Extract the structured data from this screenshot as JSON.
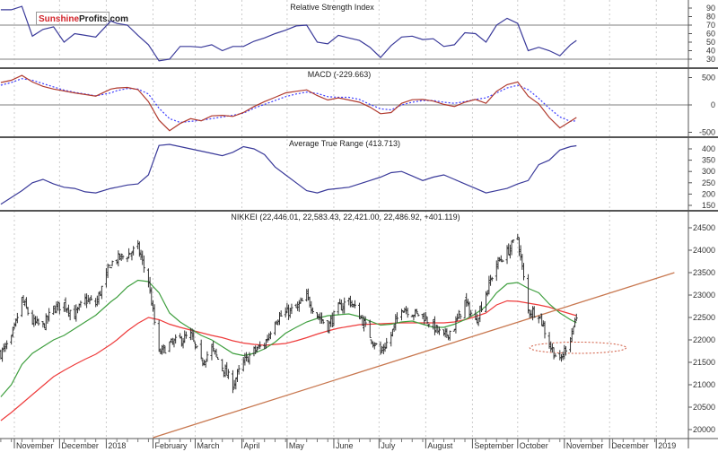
{
  "logo": {
    "part1": "Sunshine",
    "part2": "Profits.com"
  },
  "chart_data": {
    "type": "line",
    "colors": {
      "price_bars": "#333333",
      "ma_short": "#3f9f3f",
      "ma_long": "#ee3b3b",
      "trendline": "#c87850",
      "rsi": "#3a3a9a",
      "macd": "#b03a2e",
      "macd_signal": "#3c3cff",
      "atr": "#3a3a9a",
      "ellipse": "#d05a40"
    },
    "x_axis": {
      "range": [
        "2017-10-22",
        "2019-01-14"
      ],
      "ticks": [
        {
          "date": "2017-11-01",
          "label": "November"
        },
        {
          "date": "2017-12-01",
          "label": "December"
        },
        {
          "date": "2018-01-01",
          "label": "2018"
        },
        {
          "date": "2018-02-01",
          "label": "February"
        },
        {
          "date": "2018-03-01",
          "label": "March"
        },
        {
          "date": "2018-04-01",
          "label": "April"
        },
        {
          "date": "2018-05-01",
          "label": "May"
        },
        {
          "date": "2018-06-01",
          "label": "June"
        },
        {
          "date": "2018-07-01",
          "label": "July"
        },
        {
          "date": "2018-08-01",
          "label": "August"
        },
        {
          "date": "2018-09-01",
          "label": "September"
        },
        {
          "date": "2018-10-01",
          "label": "October"
        },
        {
          "date": "2018-11-01",
          "label": "November"
        },
        {
          "date": "2018-12-01",
          "label": "December"
        },
        {
          "date": "2019-01-01",
          "label": "2019"
        }
      ],
      "grid": true
    },
    "dates": [
      "2017-10-23",
      "2017-10-30",
      "2017-11-06",
      "2017-11-13",
      "2017-11-20",
      "2017-11-27",
      "2017-12-04",
      "2017-12-11",
      "2017-12-18",
      "2017-12-25",
      "2018-01-04",
      "2018-01-08",
      "2018-01-15",
      "2018-01-22",
      "2018-01-29",
      "2018-02-05",
      "2018-02-12",
      "2018-02-19",
      "2018-02-26",
      "2018-03-05",
      "2018-03-12",
      "2018-03-19",
      "2018-03-26",
      "2018-04-02",
      "2018-04-09",
      "2018-04-16",
      "2018-04-23",
      "2018-04-30",
      "2018-05-07",
      "2018-05-14",
      "2018-05-21",
      "2018-05-28",
      "2018-06-04",
      "2018-06-11",
      "2018-06-18",
      "2018-06-25",
      "2018-07-02",
      "2018-07-09",
      "2018-07-16",
      "2018-07-23",
      "2018-07-30",
      "2018-08-06",
      "2018-08-13",
      "2018-08-20",
      "2018-08-27",
      "2018-09-03",
      "2018-09-10",
      "2018-09-17",
      "2018-09-24",
      "2018-10-01",
      "2018-10-08",
      "2018-10-15",
      "2018-10-22",
      "2018-10-29",
      "2018-11-05",
      "2018-11-09"
    ],
    "panels": {
      "rsi": {
        "title": "Relative Strength Index",
        "ylim": [
          22,
          98
        ],
        "ticks": [
          90,
          80,
          70,
          60,
          50,
          40,
          30
        ],
        "reference_lines": [
          70,
          30
        ],
        "values": [
          88,
          88,
          92,
          57,
          65,
          68,
          50,
          60,
          58,
          56,
          75,
          72,
          70,
          58,
          47,
          28,
          30,
          45,
          45,
          44,
          47,
          40,
          45,
          45,
          51,
          55,
          60,
          64,
          69,
          70,
          50,
          48,
          58,
          55,
          52,
          44,
          32,
          46,
          56,
          57,
          53,
          54,
          45,
          47,
          61,
          60,
          50,
          70,
          78,
          72,
          40,
          44,
          40,
          34,
          47,
          52
        ]
      },
      "macd": {
        "title": "MACD (-229.663)",
        "ylim": [
          -650,
          650
        ],
        "ticks": [
          500,
          0,
          -500
        ],
        "reference_lines": [
          0
        ],
        "macd": [
          410,
          450,
          540,
          420,
          340,
          290,
          255,
          220,
          190,
          160,
          290,
          310,
          320,
          280,
          60,
          -280,
          -470,
          -340,
          -250,
          -290,
          -200,
          -190,
          -210,
          -140,
          -30,
          60,
          140,
          220,
          250,
          275,
          170,
          90,
          130,
          90,
          50,
          -40,
          -160,
          -140,
          30,
          95,
          100,
          70,
          10,
          -30,
          50,
          100,
          30,
          250,
          370,
          420,
          160,
          20,
          -230,
          -420,
          -300,
          -230
        ],
        "signal": [
          360,
          410,
          480,
          450,
          390,
          330,
          270,
          230,
          200,
          165,
          220,
          260,
          300,
          290,
          200,
          -60,
          -250,
          -320,
          -300,
          -280,
          -250,
          -220,
          -190,
          -150,
          -60,
          10,
          80,
          150,
          200,
          235,
          210,
          150,
          140,
          140,
          100,
          10,
          -70,
          -90,
          0,
          50,
          80,
          80,
          50,
          30,
          60,
          100,
          130,
          220,
          310,
          360,
          280,
          120,
          -60,
          -220,
          -300,
          -290
        ]
      },
      "atr": {
        "title": "Average True Range (413.713)",
        "ylim": [
          125,
          440
        ],
        "ticks": [
          400,
          350,
          300,
          250,
          200,
          150
        ],
        "values": [
          155,
          185,
          215,
          250,
          265,
          245,
          230,
          225,
          210,
          205,
          225,
          230,
          240,
          245,
          285,
          415,
          420,
          410,
          400,
          390,
          380,
          370,
          385,
          410,
          400,
          375,
          320,
          285,
          250,
          215,
          205,
          220,
          225,
          230,
          245,
          260,
          275,
          295,
          300,
          280,
          260,
          275,
          285,
          265,
          245,
          225,
          205,
          215,
          225,
          245,
          260,
          330,
          350,
          395,
          410,
          414
        ]
      },
      "price": {
        "title": "NIKKEI (22,446.01, 22,583.43, 22,421.00, 22,486.92, +401.119)",
        "ylim": [
          19850,
          24850
        ],
        "ticks": [
          24500,
          24000,
          23500,
          23000,
          22500,
          22000,
          21500,
          21000,
          20500,
          20000
        ],
        "closes": [
          21700,
          22000,
          22900,
          22400,
          22300,
          22700,
          22800,
          22550,
          22900,
          22800,
          23700,
          23800,
          23900,
          24050,
          23300,
          21700,
          21900,
          22000,
          22100,
          21500,
          21800,
          21400,
          21000,
          21500,
          21750,
          21900,
          22450,
          22600,
          22700,
          22950,
          22550,
          22300,
          22700,
          22900,
          22550,
          22100,
          21700,
          22100,
          22750,
          22600,
          22550,
          22300,
          22050,
          22300,
          22850,
          22400,
          23050,
          23700,
          23950,
          24300,
          22650,
          22600,
          21900,
          21500,
          22100,
          22487
        ],
        "last_bar": {
          "open": 22446.01,
          "high": 22583.43,
          "low": 22421.0,
          "close": 22486.92,
          "change": 401.119
        },
        "ma_short": [
          20730,
          21000,
          21450,
          21700,
          21850,
          22000,
          22100,
          22250,
          22400,
          22550,
          22850,
          22950,
          23180,
          23330,
          23300,
          23050,
          22600,
          22400,
          22250,
          22100,
          22000,
          21850,
          21700,
          21650,
          21700,
          21800,
          21950,
          22150,
          22280,
          22400,
          22480,
          22540,
          22560,
          22580,
          22520,
          22420,
          22330,
          22350,
          22400,
          22420,
          22350,
          22280,
          22280,
          22350,
          22450,
          22580,
          22750,
          23050,
          23250,
          23280,
          23150,
          23050,
          22800,
          22600,
          22450,
          22380
        ],
        "ma_long": [
          20200,
          20380,
          20580,
          20780,
          20980,
          21180,
          21320,
          21450,
          21570,
          21680,
          21900,
          22000,
          22200,
          22370,
          22500,
          22450,
          22350,
          22280,
          22220,
          22160,
          22100,
          22050,
          21980,
          21930,
          21900,
          21880,
          21900,
          21920,
          21980,
          22050,
          22130,
          22200,
          22260,
          22300,
          22340,
          22350,
          22360,
          22370,
          22380,
          22380,
          22380,
          22380,
          22380,
          22400,
          22450,
          22520,
          22600,
          22780,
          22870,
          22860,
          22820,
          22780,
          22730,
          22650,
          22580,
          22540
        ],
        "trendline": [
          {
            "date": "2018-02-01",
            "value": 19820
          },
          {
            "date": "2019-01-13",
            "value": 23500
          }
        ],
        "ellipse": {
          "date_from": "2018-10-09",
          "date_to": "2018-12-12",
          "value_low": 21700,
          "value_high": 21950
        }
      }
    }
  }
}
